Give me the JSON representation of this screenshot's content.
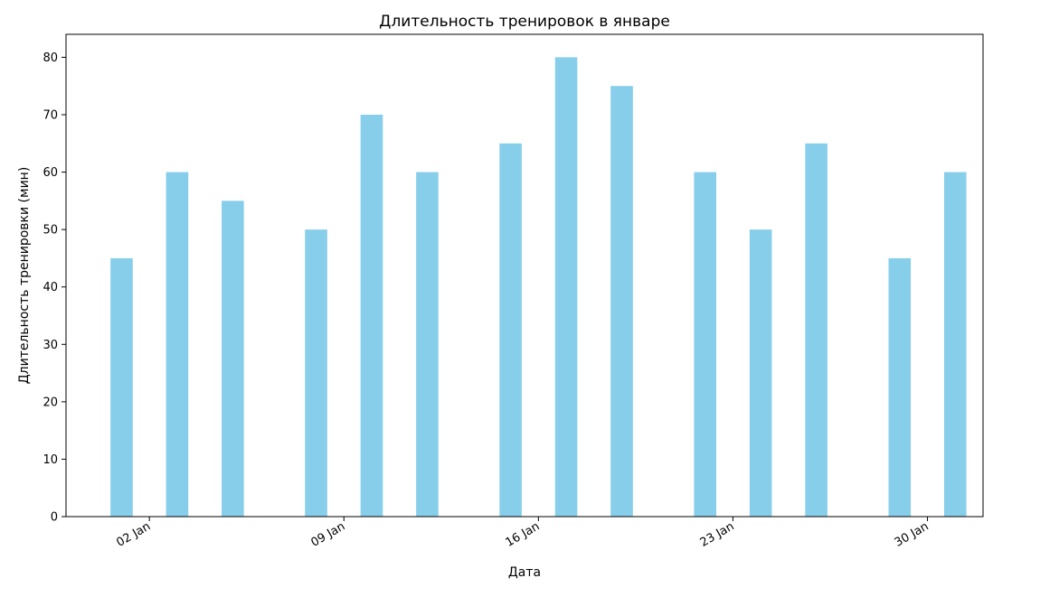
{
  "chart_data": {
    "type": "bar",
    "title": "Длительность тренировок в январе",
    "xlabel": "Дата",
    "ylabel": "Длительность тренировки (мин)",
    "bar_color": "#87ceeb",
    "x": [
      "2024-01-01",
      "2024-01-03",
      "2024-01-05",
      "2024-01-08",
      "2024-01-10",
      "2024-01-12",
      "2024-01-15",
      "2024-01-17",
      "2024-01-19",
      "2024-01-22",
      "2024-01-24",
      "2024-01-26",
      "2024-01-29",
      "2024-01-31"
    ],
    "values": [
      45,
      60,
      55,
      50,
      70,
      60,
      65,
      80,
      75,
      60,
      50,
      65,
      45,
      60
    ],
    "xlim": [
      "2023-12-30",
      "2024-02-01"
    ],
    "ylim": [
      0,
      84
    ],
    "x_ticks": [
      {
        "date": "2024-01-02",
        "label": "02 Jan"
      },
      {
        "date": "2024-01-09",
        "label": "09 Jan"
      },
      {
        "date": "2024-01-16",
        "label": "16 Jan"
      },
      {
        "date": "2024-01-23",
        "label": "23 Jan"
      },
      {
        "date": "2024-01-30",
        "label": "30 Jan"
      }
    ],
    "y_ticks": [
      0,
      10,
      20,
      30,
      40,
      50,
      60,
      70,
      80
    ],
    "grid": false,
    "legend": "none"
  }
}
